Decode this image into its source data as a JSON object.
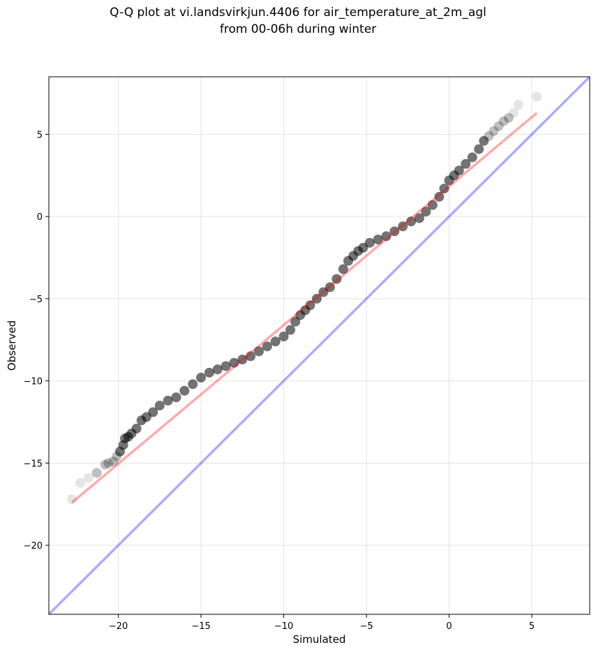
{
  "title": {
    "line1": "Q-Q plot at vi.landsvirkjun.4406 for air_temperature_at_2m_agl",
    "line2": "from 00-06h during winter"
  },
  "chart_data": {
    "type": "scatter",
    "xlabel": "Simulated",
    "ylabel": "Observed",
    "xlim": [
      -24.2,
      8.5
    ],
    "ylim": [
      -24.2,
      8.5
    ],
    "xticks": [
      -20,
      -15,
      -10,
      -5,
      0,
      5
    ],
    "yticks": [
      -20,
      -15,
      -10,
      -5,
      0,
      5
    ],
    "xtick_labels": [
      "−20",
      "−15",
      "−10",
      "−5",
      "0",
      "5"
    ],
    "ytick_labels": [
      "−20",
      "−15",
      "−10",
      "−5",
      "0",
      "5"
    ],
    "grid": true,
    "series": [
      {
        "kind": "quantile-points",
        "x": [
          -22.8,
          -22.3,
          -21.8,
          -21.3,
          -20.8,
          -20.6,
          -20.3,
          -20.1,
          -19.9,
          -19.7,
          -19.6,
          -19.4,
          -19.2,
          -18.9,
          -18.6,
          -18.3,
          -17.9,
          -17.5,
          -17.0,
          -16.5,
          -16.0,
          -15.5,
          -15.0,
          -14.5,
          -14.0,
          -13.5,
          -13.0,
          -12.5,
          -12.0,
          -11.5,
          -11.0,
          -10.5,
          -10.0,
          -9.6,
          -9.3,
          -9.0,
          -8.7,
          -8.4,
          -8.0,
          -7.6,
          -7.2,
          -6.8,
          -6.4,
          -6.1,
          -5.8,
          -5.5,
          -5.2,
          -4.8,
          -4.3,
          -3.8,
          -3.3,
          -2.8,
          -2.3,
          -1.8,
          -1.4,
          -1.0,
          -0.6,
          -0.3,
          0.0,
          0.3,
          0.6,
          1.0,
          1.4,
          1.8,
          2.1,
          2.4,
          2.7,
          3.0,
          3.3,
          3.6,
          3.9,
          4.2,
          5.3
        ],
        "y": [
          -17.2,
          -16.2,
          -15.9,
          -15.6,
          -15.1,
          -15.0,
          -14.9,
          -14.6,
          -14.3,
          -13.9,
          -13.5,
          -13.4,
          -13.2,
          -12.9,
          -12.4,
          -12.2,
          -11.9,
          -11.5,
          -11.2,
          -11.0,
          -10.6,
          -10.2,
          -9.8,
          -9.5,
          -9.3,
          -9.1,
          -8.9,
          -8.7,
          -8.5,
          -8.2,
          -7.9,
          -7.6,
          -7.3,
          -6.9,
          -6.4,
          -6.0,
          -5.7,
          -5.4,
          -5.0,
          -4.6,
          -4.3,
          -3.8,
          -3.2,
          -2.7,
          -2.4,
          -2.1,
          -1.9,
          -1.6,
          -1.4,
          -1.2,
          -0.9,
          -0.6,
          -0.3,
          -0.1,
          0.3,
          0.7,
          1.2,
          1.7,
          2.2,
          2.5,
          2.8,
          3.2,
          3.6,
          4.1,
          4.6,
          4.9,
          5.2,
          5.5,
          5.8,
          6.0,
          6.3,
          6.8,
          7.3
        ]
      },
      {
        "kind": "fit-line",
        "x": [
          -22.8,
          5.3
        ],
        "y": [
          -17.4,
          6.3
        ],
        "color": "#ff0000"
      },
      {
        "kind": "identity-line",
        "x": [
          -24.2,
          8.5
        ],
        "y": [
          -24.2,
          8.5
        ],
        "color": "#0000ff"
      }
    ]
  }
}
